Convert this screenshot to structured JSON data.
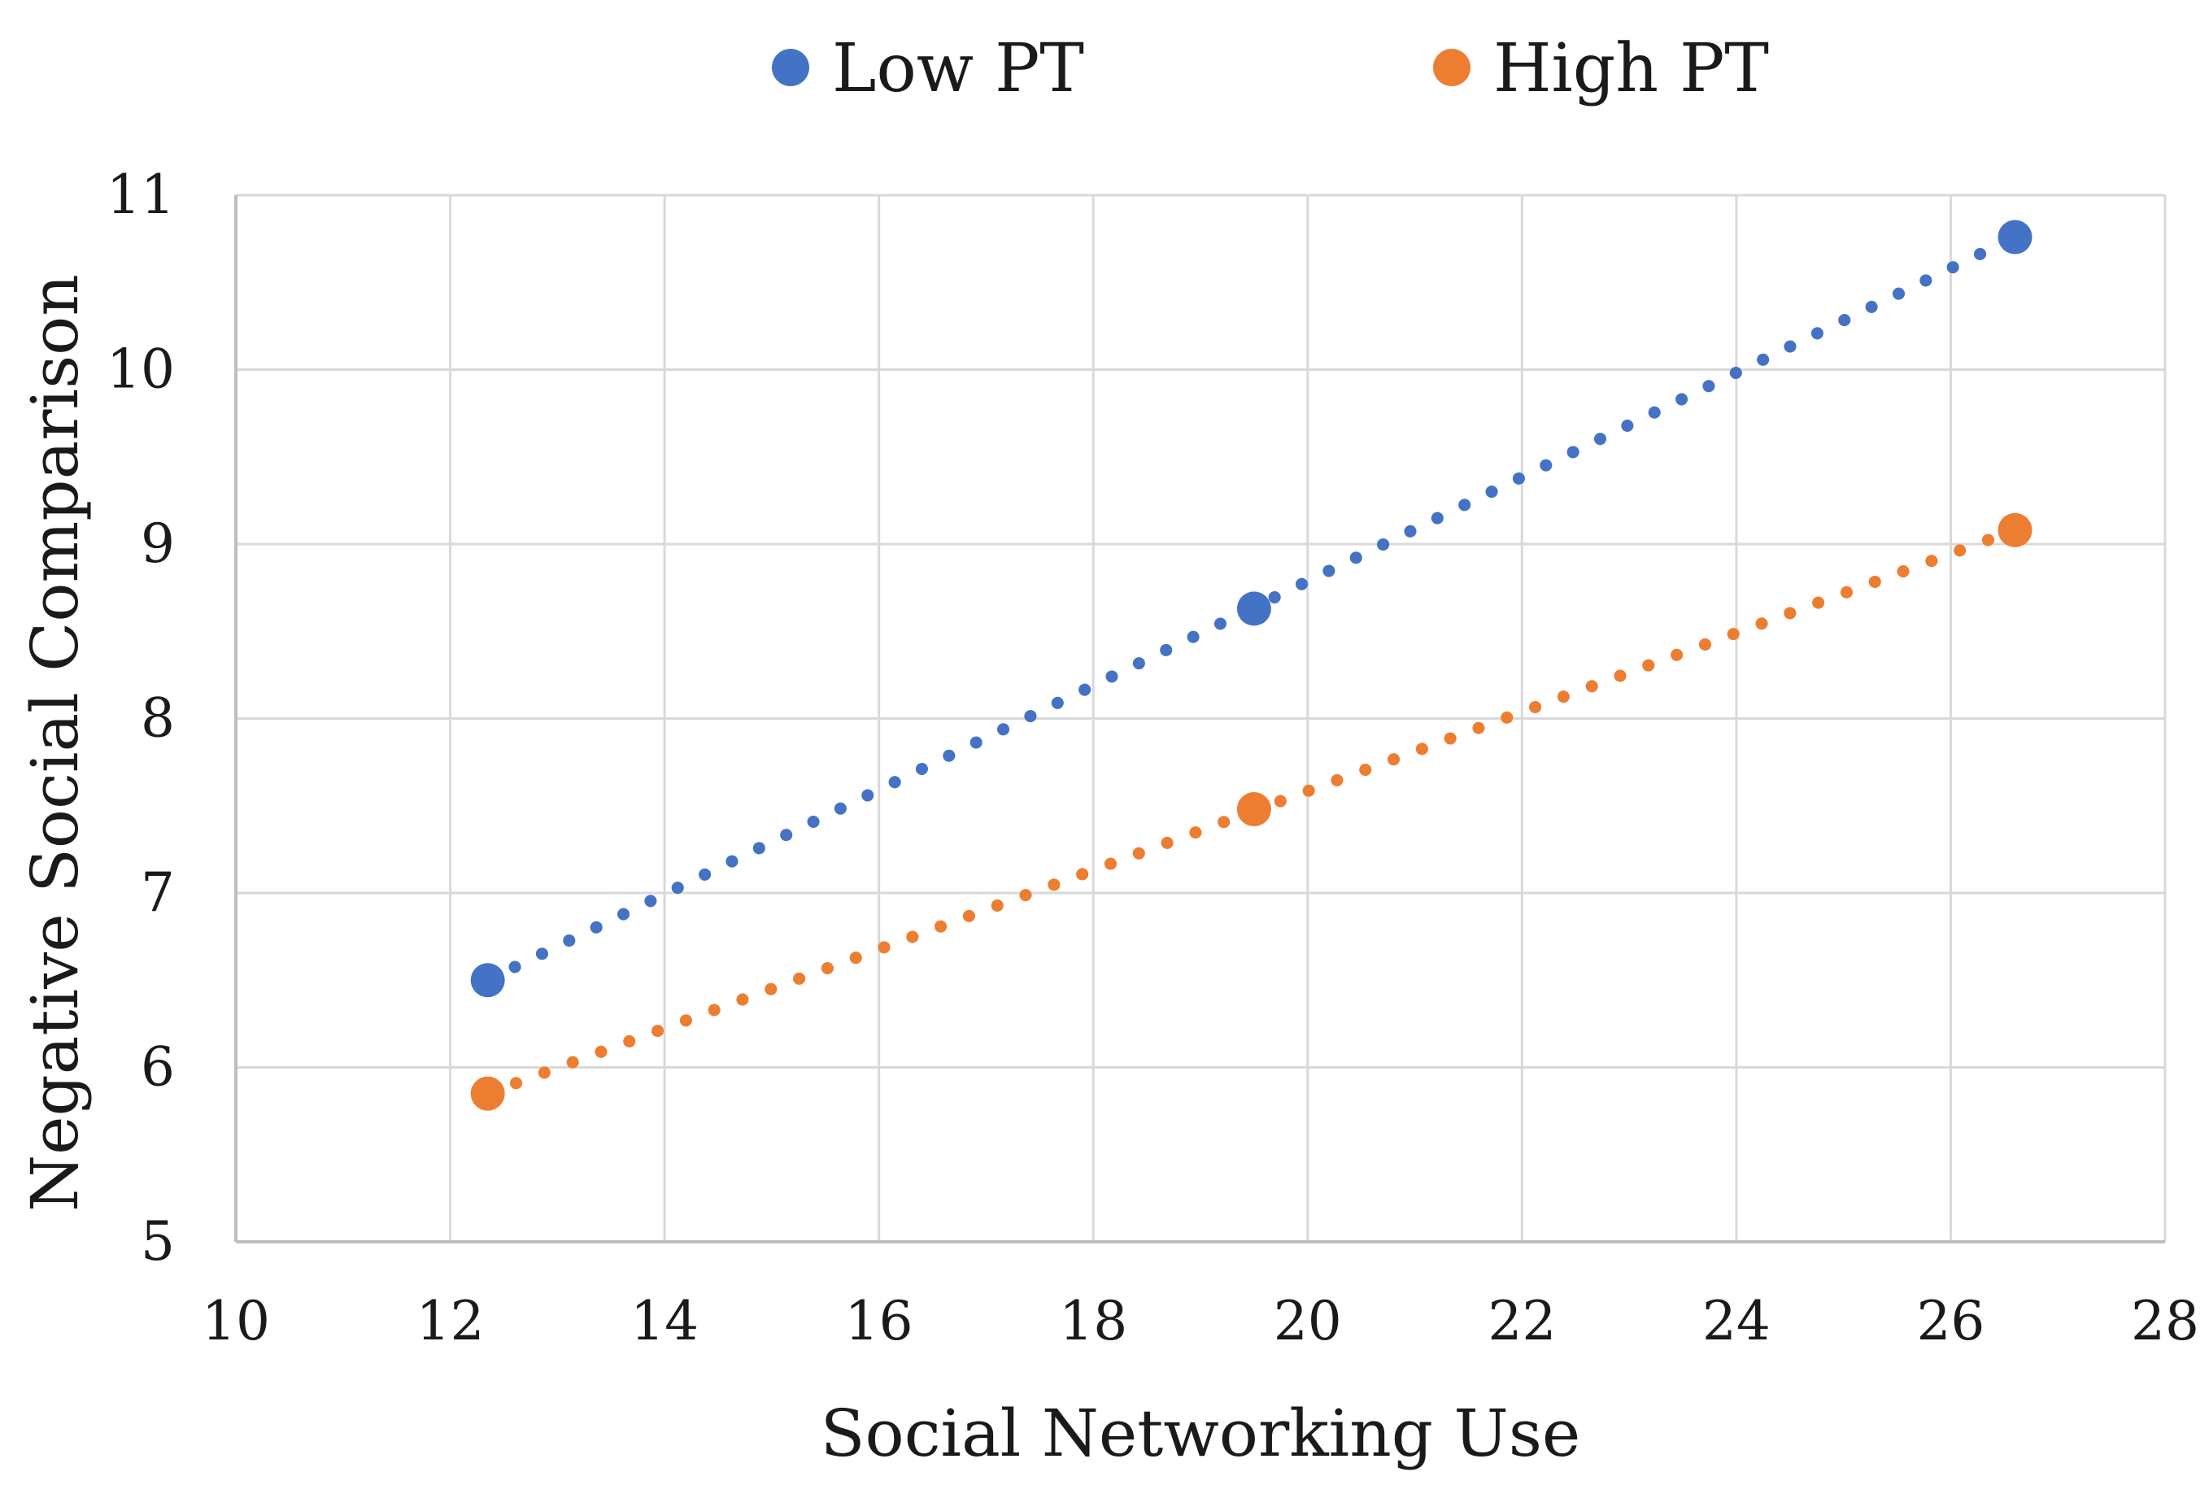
{
  "chart_data": {
    "type": "scatter",
    "title": "",
    "xlabel": "Social Networking Use",
    "ylabel": "Negative Social Comparison",
    "xlim": [
      10,
      28
    ],
    "ylim": [
      5,
      11
    ],
    "xticks": [
      "10",
      "12",
      "14",
      "16",
      "18",
      "20",
      "22",
      "24",
      "26",
      "28"
    ],
    "yticks": [
      "5",
      "6",
      "7",
      "8",
      "9",
      "10",
      "11"
    ],
    "grid": true,
    "legend_position": "top-center",
    "series": [
      {
        "name": "Low PT",
        "color": "#4472c4",
        "trendline": "dotted",
        "points": [
          {
            "x": 12.35,
            "y": 6.5
          },
          {
            "x": 19.5,
            "y": 8.63
          },
          {
            "x": 26.6,
            "y": 10.76
          }
        ]
      },
      {
        "name": "High PT",
        "color": "#ed7d31",
        "trendline": "dotted",
        "points": [
          {
            "x": 12.35,
            "y": 5.85
          },
          {
            "x": 19.5,
            "y": 7.48
          },
          {
            "x": 26.6,
            "y": 9.08
          }
        ]
      }
    ]
  }
}
